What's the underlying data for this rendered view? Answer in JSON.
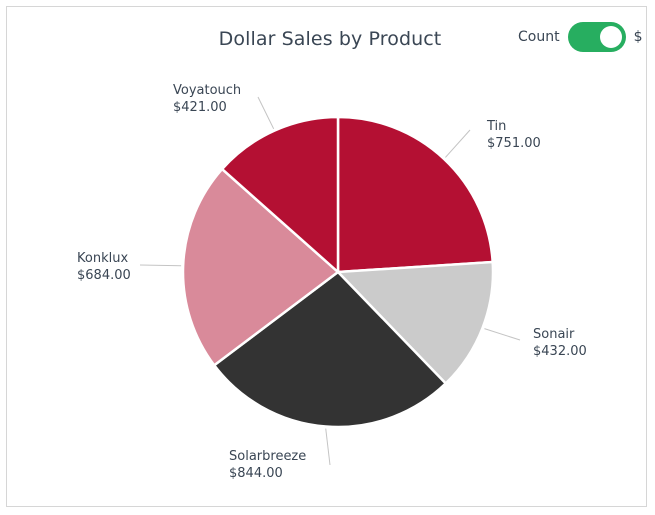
{
  "header": {
    "title": "Dollar Sales by Product",
    "toggle_label_left": "Count",
    "toggle_label_right": "$",
    "toggle_on": true
  },
  "colors": {
    "Tin": "#b41033",
    "Sonair": "#cbcbcb",
    "Solarbreeze": "#333333",
    "Konklux": "#d98a9a",
    "Voyatouch": "#b41033",
    "toggle": "#27ae60"
  },
  "chart_data": {
    "type": "pie",
    "title": "Dollar Sales by Product",
    "categories": [
      "Tin",
      "Sonair",
      "Solarbreeze",
      "Konklux",
      "Voyatouch"
    ],
    "values": [
      751,
      432,
      844,
      684,
      421
    ],
    "value_labels": [
      "$751.00",
      "$432.00",
      "$844.00",
      "$684.00",
      "$421.00"
    ],
    "legend": "none"
  }
}
